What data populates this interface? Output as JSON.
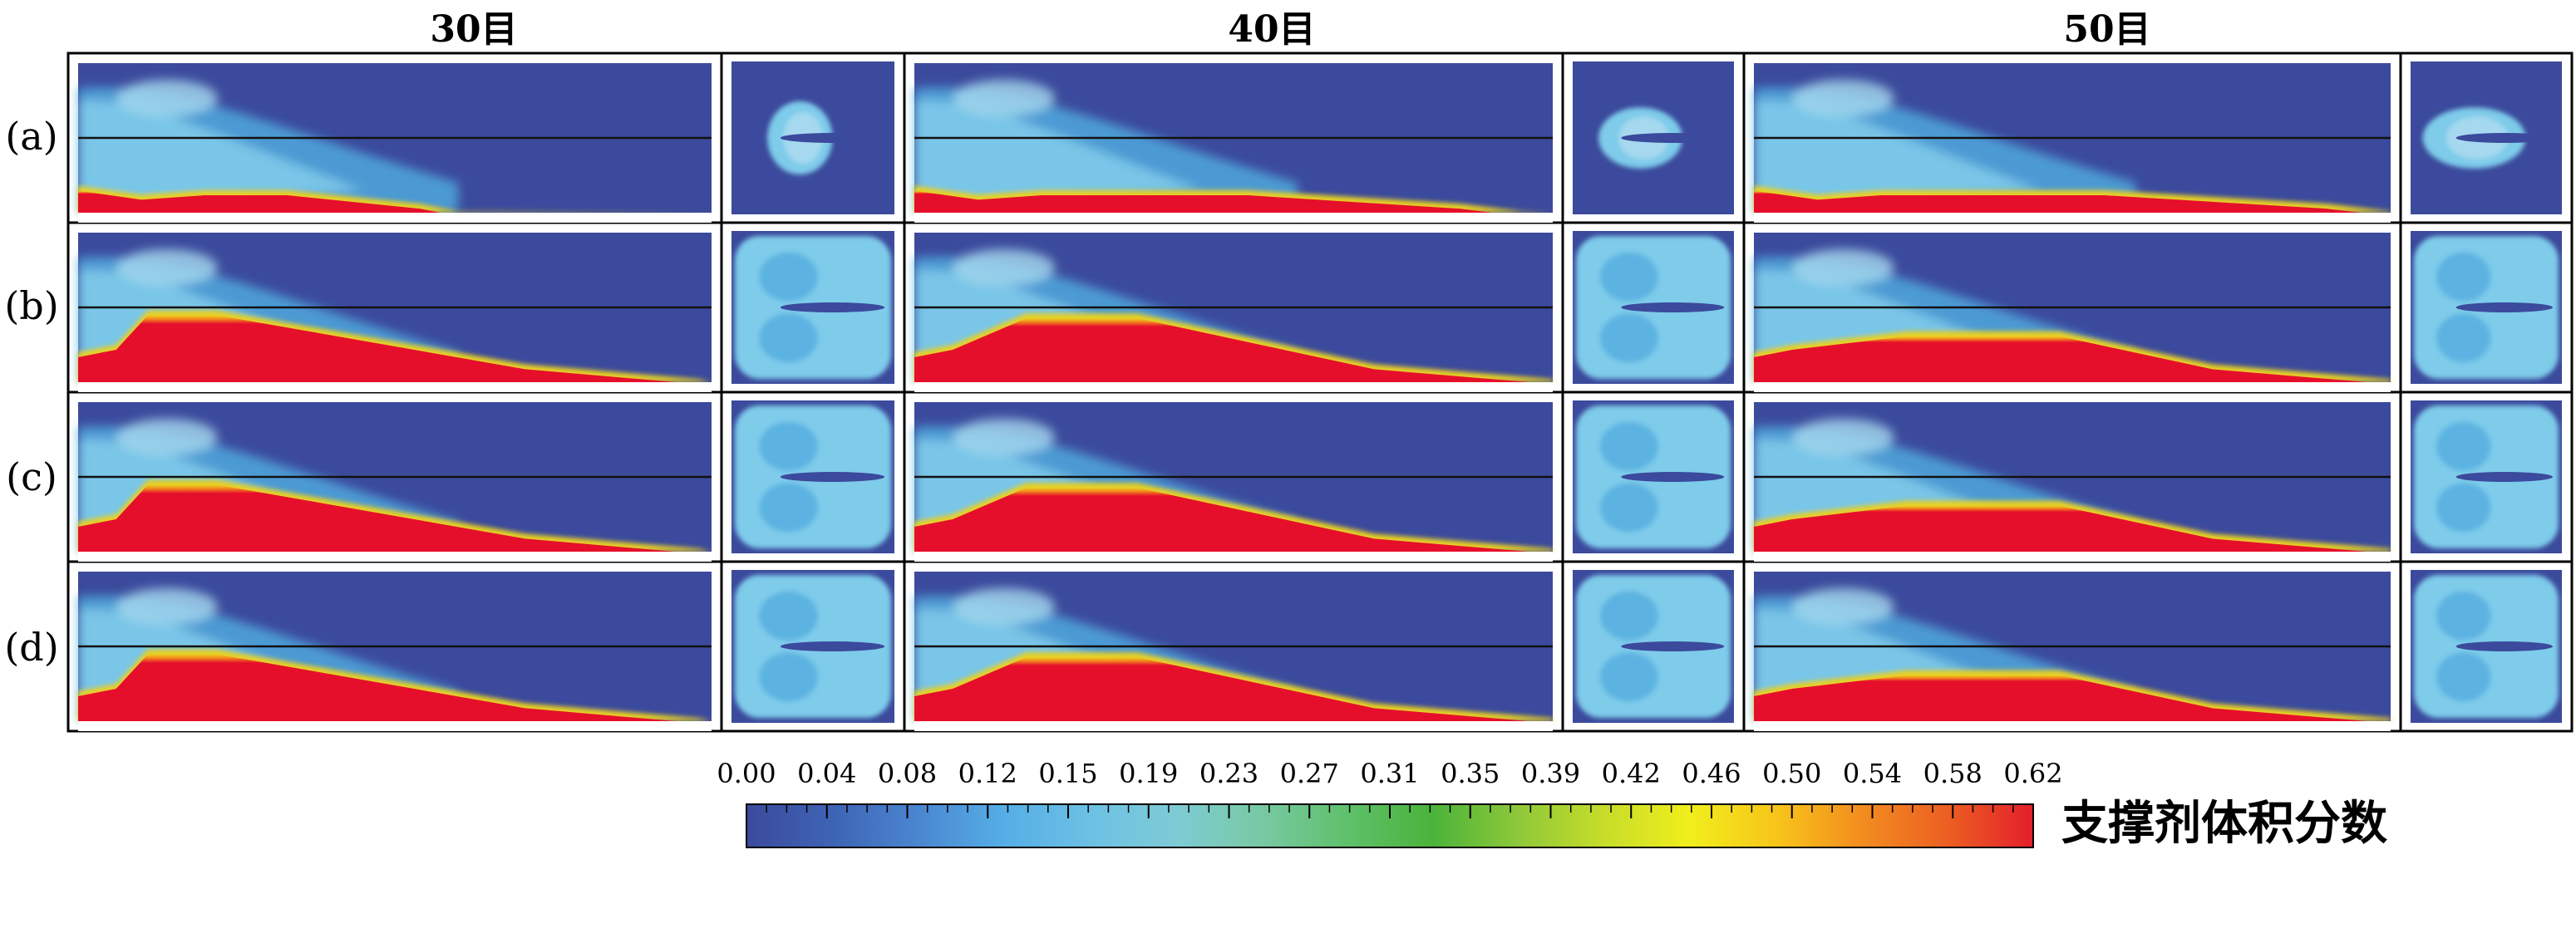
{
  "columns": [
    "30目",
    "40目",
    "50目"
  ],
  "rows": [
    "(a)",
    "(b)",
    "(c)",
    "(d)"
  ],
  "colorbar": {
    "label": "支撑剂体积分数",
    "ticks": [
      "0.00",
      "0.04",
      "0.08",
      "0.12",
      "0.15",
      "0.19",
      "0.23",
      "0.27",
      "0.31",
      "0.35",
      "0.39",
      "0.42",
      "0.46",
      "0.50",
      "0.54",
      "0.58",
      "0.62"
    ],
    "stops": [
      "#3b4a9c",
      "#3e63b5",
      "#4a86d1",
      "#55aee6",
      "#6cc0e4",
      "#7ecbd6",
      "#78c9a4",
      "#5fc06b",
      "#4bb33a",
      "#8fc83a",
      "#c7dd2a",
      "#f1ee1c",
      "#f7c51a",
      "#f38d1f",
      "#ec5f22",
      "#e31f2b"
    ]
  },
  "colors": {
    "background": "#3b4a9c",
    "proppant": "#e60f2b",
    "front": "#e8d020",
    "fluid_light": "#7ecbea",
    "fluid_mid": "#4fa8dd",
    "fluid_pale": "#a6d9ef"
  }
}
